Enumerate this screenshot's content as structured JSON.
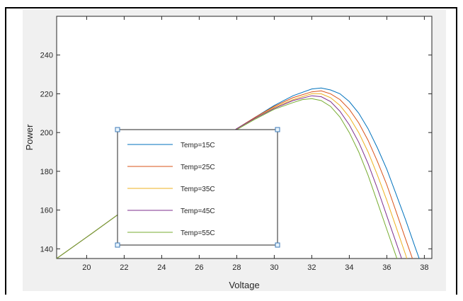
{
  "chart_data": {
    "type": "line",
    "title": "",
    "xlabel": "Voltage",
    "ylabel": "Power",
    "xlim": [
      18.4,
      38.4
    ],
    "ylim": [
      135,
      260
    ],
    "xticks": [
      20,
      22,
      24,
      26,
      28,
      30,
      32,
      34,
      36,
      38
    ],
    "yticks": [
      140,
      160,
      180,
      200,
      220,
      240
    ],
    "grid": false,
    "legend_position": "lower-left",
    "series": [
      {
        "name": "Temp=15C",
        "color": "#0072bd",
        "x": [
          18.4,
          20,
          22,
          24,
          26,
          28,
          29,
          30,
          31,
          32,
          32.5,
          33,
          33.5,
          34,
          34.5,
          35,
          35.5,
          36,
          36.5,
          37,
          37.5,
          37.8
        ],
        "y": [
          135,
          146,
          160,
          174,
          188,
          202,
          208,
          214,
          219,
          222.5,
          223,
          222,
          220,
          216,
          210,
          202,
          192,
          181,
          168,
          155,
          141,
          133
        ]
      },
      {
        "name": "Temp=25C",
        "color": "#d95319",
        "x": [
          18.4,
          20,
          22,
          24,
          26,
          28,
          29,
          30,
          31,
          32,
          32.5,
          33,
          33.5,
          34,
          34.5,
          35,
          35.5,
          36,
          36.5,
          37,
          37.4,
          37.6
        ],
        "y": [
          135,
          146,
          160,
          174,
          188,
          202,
          208,
          213.5,
          218,
          221,
          221.5,
          220,
          217,
          212,
          205,
          196,
          185,
          173,
          159,
          145,
          134,
          129
        ]
      },
      {
        "name": "Temp=35C",
        "color": "#edb120",
        "x": [
          18.4,
          20,
          22,
          24,
          26,
          28,
          29,
          30,
          31,
          32,
          32.5,
          33,
          33.5,
          34,
          34.5,
          35,
          35.5,
          36,
          36.5,
          37,
          37.3
        ],
        "y": [
          135,
          146,
          160,
          174,
          188,
          202,
          207.5,
          213,
          217,
          220,
          220,
          218,
          214,
          208,
          200,
          190,
          178,
          165,
          151,
          137,
          128
        ]
      },
      {
        "name": "Temp=45C",
        "color": "#7e2f8e",
        "x": [
          18.4,
          20,
          22,
          24,
          26,
          28,
          29,
          30,
          31,
          32,
          32.5,
          33,
          33.5,
          34,
          34.5,
          35,
          35.5,
          36,
          36.5,
          37
        ],
        "y": [
          135,
          146,
          160,
          174,
          188,
          202,
          207.5,
          212.5,
          216.5,
          219,
          218.5,
          216,
          211,
          204,
          195,
          184,
          171,
          157,
          143,
          129
        ]
      },
      {
        "name": "Temp=55C",
        "color": "#77ac30",
        "x": [
          18.4,
          20,
          22,
          24,
          26,
          28,
          29,
          30,
          31,
          31.5,
          32,
          32.5,
          33,
          33.5,
          34,
          34.5,
          35,
          35.5,
          36,
          36.5,
          36.8
        ],
        "y": [
          135,
          146,
          160,
          174,
          188,
          201.5,
          207,
          212,
          215.5,
          217,
          217.5,
          216.5,
          213.5,
          208,
          200,
          190,
          178,
          164,
          150,
          136,
          128
        ]
      }
    ]
  }
}
